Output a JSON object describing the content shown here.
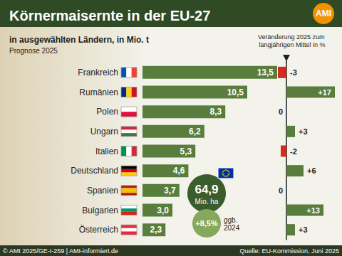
{
  "chart_data": [
    {
      "type": "bar",
      "title": "Körnermaisernte in der EU-27",
      "subtitle": "in ausgewählten Ländern, in Mio. t",
      "annotations": {
        "forecast": "Prognose 2025",
        "area_value": "64,9",
        "area_unit": "Mio. ha",
        "change_value": "+8,5%",
        "change_text": "ggb. 2024",
        "logo": "AMI",
        "credit": "© AMI 2025/GE-I-259 | AMI-informiert.de",
        "source": "Quelle: EU-Kommission, Juni 2025"
      },
      "categories": [
        "Frankreich",
        "Rumänien",
        "Polen",
        "Ungarn",
        "Italien",
        "Deutschland",
        "Spanien",
        "Bulgarien",
        "Österreich"
      ],
      "values": [
        13.5,
        10.5,
        8.3,
        6.2,
        5.3,
        4.6,
        3.7,
        3.0,
        2.3
      ],
      "value_labels": [
        "13,5",
        "10,5",
        "8,3",
        "6,2",
        "5,3",
        "4,6",
        "3,7",
        "3,0",
        "2,3"
      ],
      "color": "#587d3c",
      "xlim": [
        0,
        14
      ],
      "orientation": "horizontal",
      "data_labels": true,
      "tick_labels": "y"
    },
    {
      "type": "bar",
      "title": "Veränderung 2025 zum langjährigen Mittel in %",
      "categories": [
        "Frankreich",
        "Rumänien",
        "Polen",
        "Ungarn",
        "Italien",
        "Deutschland",
        "Spanien",
        "Bulgarien",
        "Österreich"
      ],
      "values": [
        -3,
        17,
        0,
        3,
        -2,
        6,
        0,
        13,
        3
      ],
      "value_labels": [
        "-3",
        "+17",
        "0",
        "+3",
        "-2",
        "+6",
        "0",
        "+13",
        "+3"
      ],
      "colors": [
        "#d52b1e",
        "#587d3c",
        "#587d3c",
        "#587d3c",
        "#d52b1e",
        "#587d3c",
        "#587d3c",
        "#587d3c",
        "#587d3c"
      ],
      "xlim": [
        -5,
        18
      ],
      "orientation": "horizontal",
      "data_labels": true,
      "tick_labels": false
    }
  ]
}
